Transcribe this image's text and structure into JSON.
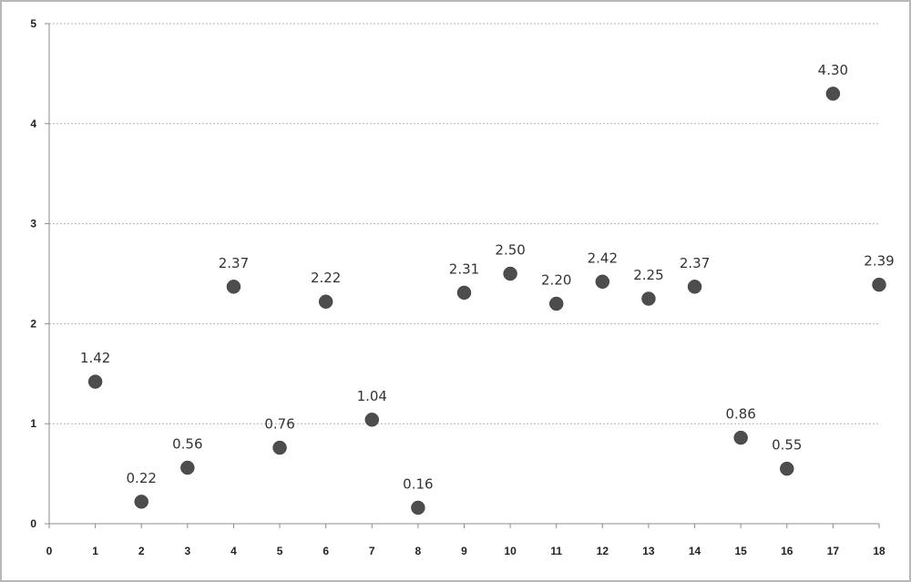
{
  "chart_data": {
    "type": "scatter",
    "title": "",
    "xlabel": "",
    "ylabel": "",
    "xlim": [
      0,
      18
    ],
    "ylim": [
      0,
      5
    ],
    "x_ticks": [
      0,
      1,
      2,
      3,
      4,
      5,
      6,
      7,
      8,
      9,
      10,
      11,
      12,
      13,
      14,
      15,
      16,
      17,
      18
    ],
    "y_ticks": [
      0,
      1,
      2,
      3,
      4,
      5
    ],
    "grid": "horizontal",
    "legend": "none",
    "marker_color": "#4d4d4d",
    "series": [
      {
        "x": [
          1,
          2,
          3,
          4,
          5,
          6,
          7,
          8,
          9,
          10,
          11,
          12,
          13,
          14,
          15,
          16,
          17,
          18
        ],
        "y": [
          1.42,
          0.22,
          0.56,
          2.37,
          0.76,
          2.22,
          1.04,
          0.16,
          2.31,
          2.5,
          2.2,
          2.42,
          2.25,
          2.37,
          0.86,
          0.55,
          4.3,
          2.39
        ],
        "labels": [
          "1.42",
          "0.22",
          "0.56",
          "2.37",
          "0.76",
          "2.22",
          "1.04",
          "0.16",
          "2.31",
          "2.50",
          "2.20",
          "2.42",
          "2.25",
          "2.37",
          "0.86",
          "0.55",
          "4.30",
          "2.39"
        ]
      }
    ]
  }
}
